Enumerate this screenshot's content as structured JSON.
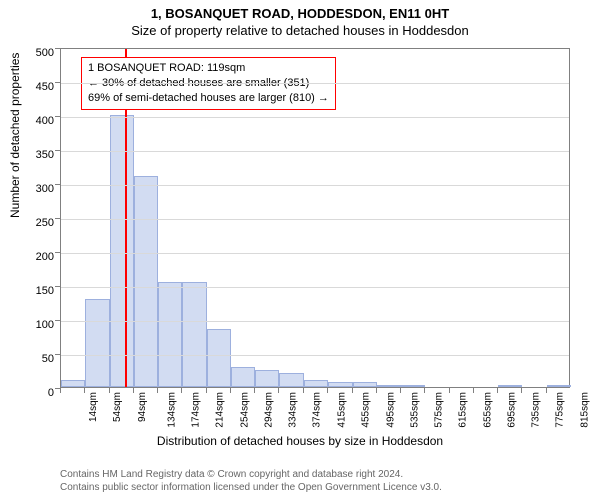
{
  "title": {
    "line1": "1, BOSANQUET ROAD, HODDESDON, EN11 0HT",
    "line2": "Size of property relative to detached houses in Hoddesdon",
    "fontsize": 13
  },
  "chart": {
    "type": "histogram",
    "background_color": "#ffffff",
    "grid_color": "#d9d9d9",
    "axis_color": "#808080",
    "bar_fill": "#d2dcf2",
    "bar_stroke": "#9db0de",
    "bar_width": 1.0,
    "ylim": [
      0,
      500
    ],
    "ytick_step": 50,
    "ylabel": "Number of detached properties",
    "xlabel": "Distribution of detached houses by size in Hoddesdon",
    "label_fontsize": 12,
    "tick_fontsize": 11,
    "bin_width_sqm": 40,
    "xticks": [
      "14sqm",
      "54sqm",
      "94sqm",
      "134sqm",
      "174sqm",
      "214sqm",
      "254sqm",
      "294sqm",
      "334sqm",
      "374sqm",
      "415sqm",
      "455sqm",
      "495sqm",
      "535sqm",
      "575sqm",
      "615sqm",
      "655sqm",
      "695sqm",
      "735sqm",
      "775sqm",
      "815sqm"
    ],
    "bins": [
      14,
      54,
      94,
      134,
      174,
      214,
      254,
      294,
      334,
      374,
      415,
      455,
      495,
      535,
      575,
      615,
      655,
      695,
      735,
      775,
      815,
      855
    ],
    "values": [
      10,
      130,
      400,
      310,
      155,
      155,
      85,
      30,
      25,
      20,
      10,
      8,
      8,
      2,
      2,
      0,
      0,
      0,
      3,
      0,
      2
    ]
  },
  "marker": {
    "value_sqm": 119,
    "color": "#ff0000"
  },
  "annotation": {
    "lines": [
      "1 BOSANQUET ROAD: 119sqm",
      "← 30% of detached houses are smaller (351)",
      "69% of semi-detached houses are larger (810) →"
    ],
    "border_color": "#ff0000",
    "background": "#ffffff",
    "fontsize": 11
  },
  "footer": {
    "line1": "Contains HM Land Registry data © Crown copyright and database right 2024.",
    "line2": "Contains public sector information licensed under the Open Government Licence v3.0.",
    "color": "#666666",
    "fontsize": 10
  }
}
